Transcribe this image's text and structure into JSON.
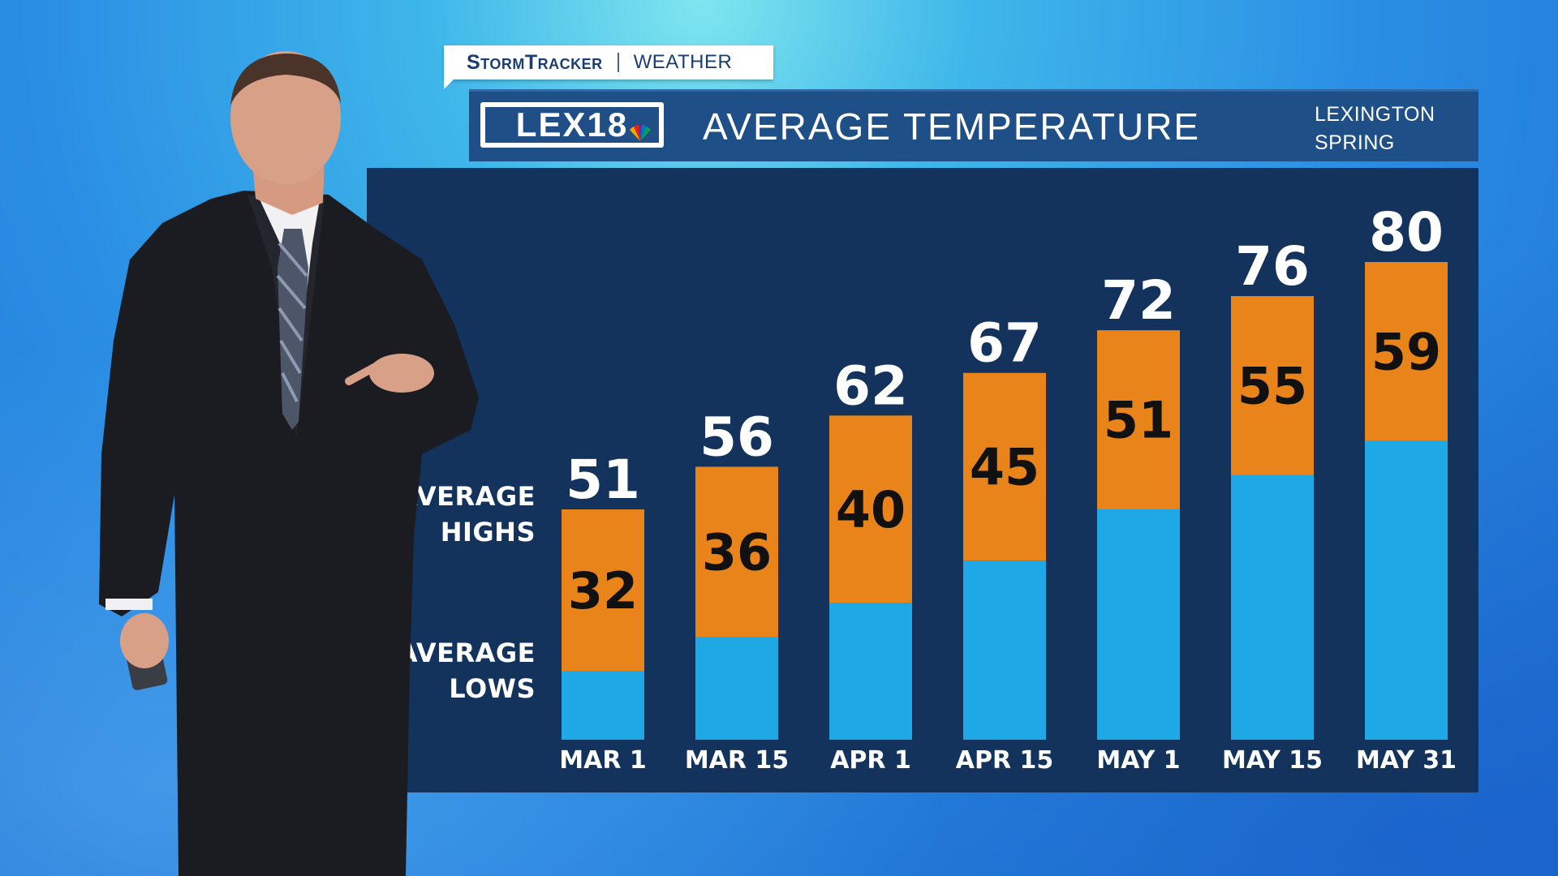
{
  "header": {
    "brand": "StormTracker",
    "section": "WEATHER",
    "logo_text": "LEX18",
    "title": "AVERAGE TEMPERATURE",
    "location_line1": "LEXINGTON",
    "location_line2": "SPRING"
  },
  "labels": {
    "highs_line1": "AVERAGE",
    "highs_line2": "HIGHS",
    "lows_line1": "AVERAGE",
    "lows_line2": "LOWS"
  },
  "colors": {
    "highs": "#e8841a",
    "lows": "#1fa8e6",
    "panel": "#13325c",
    "title_bar": "#1e4f86"
  },
  "chart_data": {
    "type": "bar",
    "title": "AVERAGE TEMPERATURE",
    "categories": [
      "MAR 1",
      "MAR 15",
      "APR 1",
      "APR 15",
      "MAY 1",
      "MAY 15",
      "MAY 31"
    ],
    "series": [
      {
        "name": "AVERAGE HIGHS",
        "values": [
          51,
          56,
          62,
          67,
          72,
          76,
          80
        ]
      },
      {
        "name": "AVERAGE LOWS",
        "values": [
          32,
          36,
          40,
          45,
          51,
          55,
          59
        ]
      }
    ],
    "ylim": [
      24,
      80
    ],
    "grid": false
  }
}
